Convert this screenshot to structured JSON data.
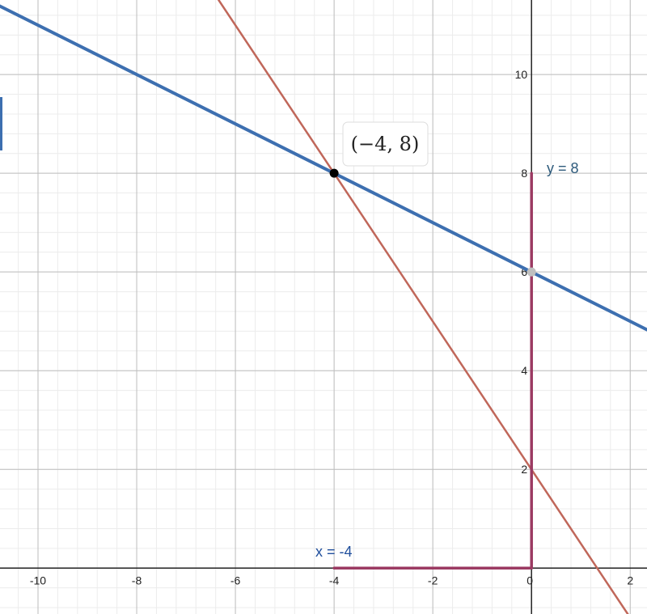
{
  "chart_data": {
    "type": "line",
    "xlim": [
      -10.77,
      2.34
    ],
    "ylim": [
      -0.93,
      11.51
    ],
    "xticks": [
      -10,
      -8,
      -6,
      -4,
      -2,
      0,
      2
    ],
    "yticks": [
      2,
      4,
      6,
      8,
      10
    ],
    "grid": true,
    "minor_grid": 5,
    "series": [
      {
        "color": "#3d6fb0",
        "width": 4,
        "x": [
          -10.77,
          2.34
        ],
        "values": [
          11.385,
          4.83
        ]
      },
      {
        "color": "#c0675a",
        "width": 2.5,
        "x": [
          -6.34,
          1.95
        ],
        "values": [
          11.51,
          -0.93
        ]
      },
      {
        "color": "#9b3a62",
        "width": 3.5,
        "x": [
          0,
          0
        ],
        "values": [
          0,
          8
        ]
      },
      {
        "color": "#9b3a62",
        "width": 3.5,
        "x": [
          -4,
          0
        ],
        "values": [
          0,
          0
        ]
      }
    ],
    "points": {
      "x": [
        -4,
        0
      ],
      "values": [
        8,
        6
      ],
      "colors": [
        "#000000",
        "#bfbfbf"
      ]
    },
    "annotations": [
      "(−4, 8)",
      "y = 8",
      "x = -4"
    ]
  }
}
